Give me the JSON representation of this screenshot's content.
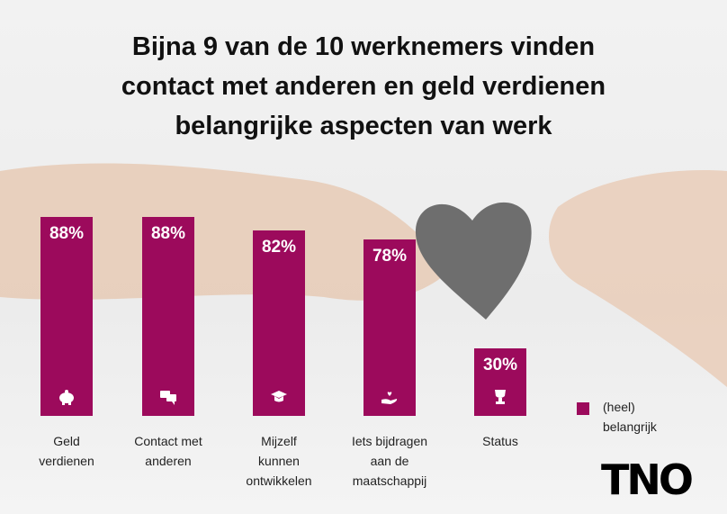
{
  "chart_data": {
    "type": "bar",
    "title": "Bijna 9 van de 10 werknemers vinden\ncontact met anderen en geld verdienen\nbelangrijke aspecten van werk",
    "categories": [
      "Geld\nverdienen",
      "Contact met\nanderen",
      "Mijzelf\nkunnen\nontwikkelen",
      "Iets bijdragen\naan de\nmaatschappij",
      "Status"
    ],
    "series": [
      {
        "name": "(heel)\nbelangrijk",
        "color": "#9c0a5c",
        "values": [
          88,
          88,
          82,
          78,
          30
        ],
        "value_labels": [
          "88%",
          "88%",
          "82%",
          "78%",
          "30%"
        ]
      }
    ],
    "legend": "right"
  },
  "logo": "TNO"
}
